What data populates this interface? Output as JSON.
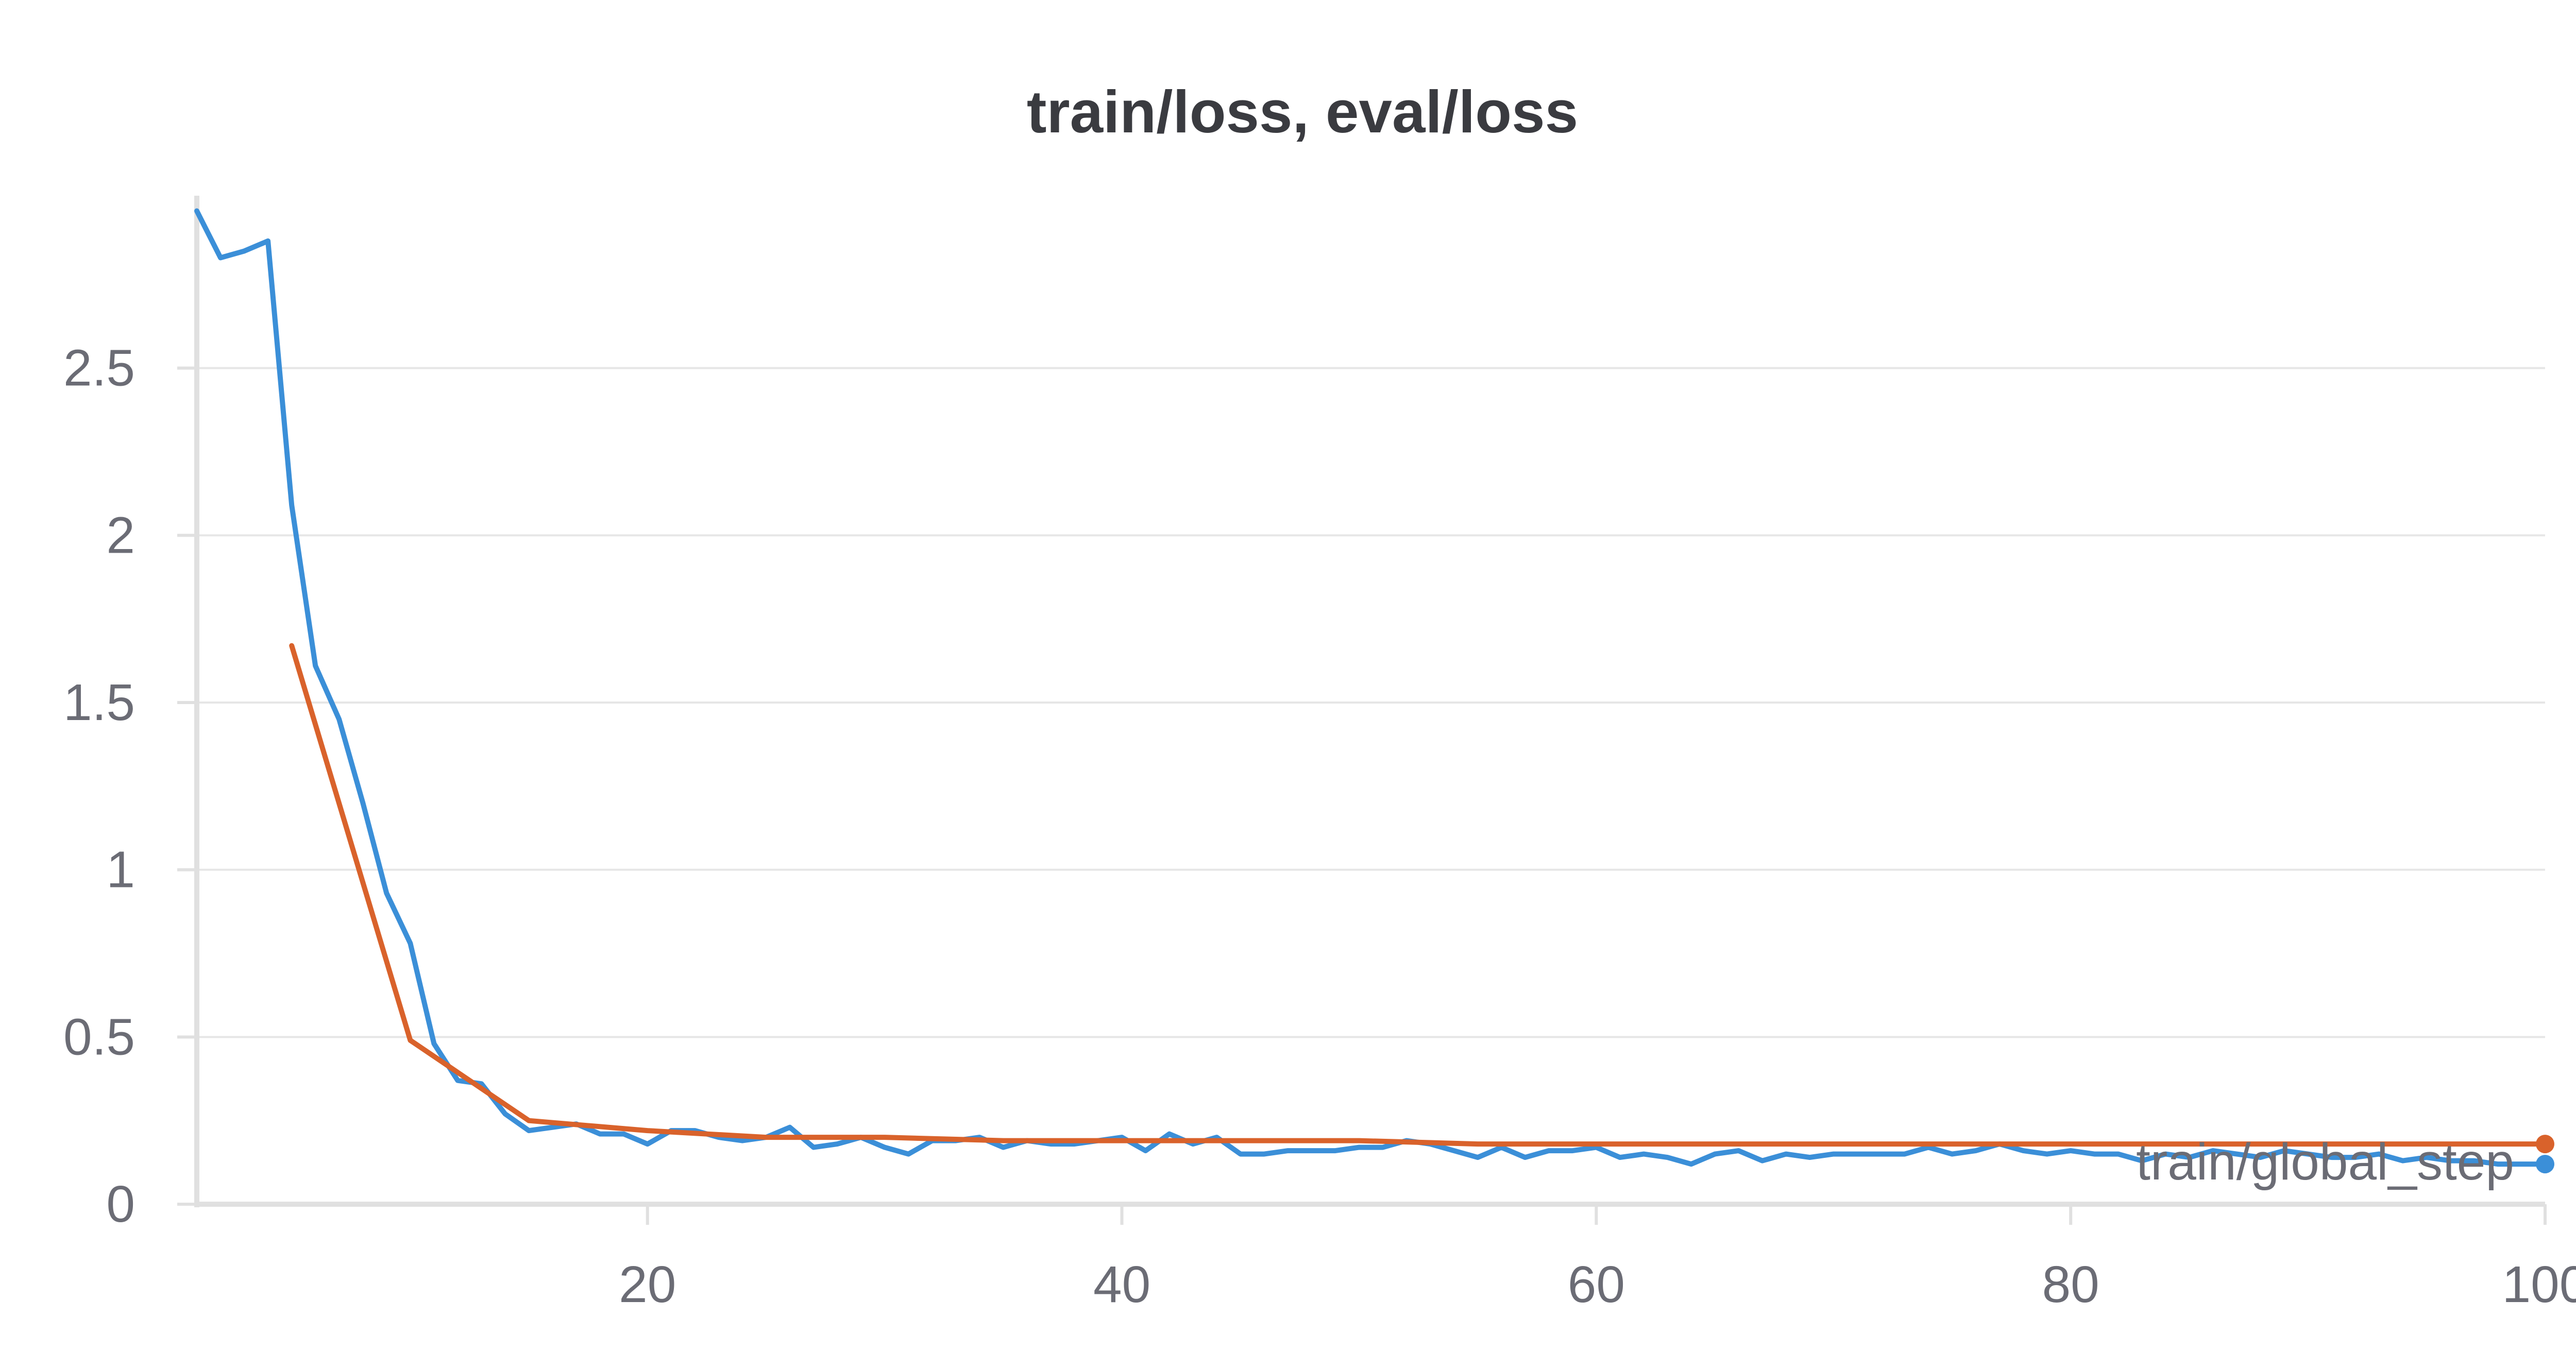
{
  "title": "train/loss, eval/loss",
  "chart_data": {
    "type": "line",
    "title": "train/loss, eval/loss",
    "xlabel": "train/global_step",
    "ylabel": "",
    "xlim": [
      1,
      100
    ],
    "ylim": [
      0,
      3.0
    ],
    "x_ticks": [
      20,
      40,
      60,
      80,
      100
    ],
    "y_ticks": [
      0,
      0.5,
      1,
      1.5,
      2,
      2.5
    ],
    "x_tick_labels": [
      "20",
      "40",
      "60",
      "80",
      "100"
    ],
    "y_tick_labels": [
      "0",
      "0.5",
      "1",
      "1.5",
      "2",
      "2.5"
    ],
    "grid": "horizontal",
    "legend": "none",
    "series": [
      {
        "color": "#3b8fd8",
        "x": [
          1,
          2,
          3,
          4,
          5,
          6,
          7,
          8,
          9,
          10,
          11,
          12,
          13,
          14,
          15,
          16,
          17,
          18,
          19,
          20,
          21,
          22,
          23,
          24,
          25,
          26,
          27,
          28,
          29,
          30,
          31,
          32,
          33,
          34,
          35,
          36,
          37,
          38,
          39,
          40,
          41,
          42,
          43,
          44,
          45,
          46,
          47,
          48,
          49,
          50,
          51,
          52,
          53,
          54,
          55,
          56,
          57,
          58,
          59,
          60,
          61,
          62,
          63,
          64,
          65,
          66,
          67,
          68,
          69,
          70,
          71,
          72,
          73,
          74,
          75,
          76,
          77,
          78,
          79,
          80,
          81,
          82,
          83,
          84,
          85,
          86,
          87,
          88,
          89,
          90,
          91,
          92,
          93,
          94,
          95,
          96,
          97,
          98,
          99,
          100
        ],
        "y": [
          2.97,
          2.83,
          2.85,
          2.88,
          2.09,
          1.61,
          1.45,
          1.2,
          0.93,
          0.78,
          0.48,
          0.37,
          0.36,
          0.27,
          0.22,
          0.23,
          0.24,
          0.21,
          0.21,
          0.18,
          0.22,
          0.22,
          0.2,
          0.19,
          0.2,
          0.23,
          0.17,
          0.18,
          0.2,
          0.17,
          0.15,
          0.19,
          0.19,
          0.2,
          0.17,
          0.19,
          0.18,
          0.18,
          0.19,
          0.2,
          0.16,
          0.21,
          0.18,
          0.2,
          0.15,
          0.15,
          0.16,
          0.16,
          0.16,
          0.17,
          0.17,
          0.19,
          0.18,
          0.16,
          0.14,
          0.17,
          0.14,
          0.16,
          0.16,
          0.17,
          0.14,
          0.15,
          0.14,
          0.12,
          0.15,
          0.16,
          0.13,
          0.15,
          0.14,
          0.15,
          0.15,
          0.15,
          0.15,
          0.17,
          0.15,
          0.16,
          0.18,
          0.16,
          0.15,
          0.16,
          0.15,
          0.15,
          0.13,
          0.15,
          0.14,
          0.16,
          0.15,
          0.14,
          0.16,
          0.15,
          0.14,
          0.14,
          0.15,
          0.13,
          0.14,
          0.13,
          0.13,
          0.12,
          0.12,
          0.12
        ]
      },
      {
        "color": "#d9622b",
        "x": [
          5,
          10,
          15,
          20,
          25,
          30,
          35,
          40,
          45,
          50,
          55,
          60,
          65,
          70,
          75,
          80,
          85,
          90,
          95,
          100
        ],
        "y": [
          1.67,
          0.49,
          0.25,
          0.22,
          0.2,
          0.2,
          0.19,
          0.19,
          0.19,
          0.19,
          0.18,
          0.18,
          0.18,
          0.18,
          0.18,
          0.18,
          0.18,
          0.18,
          0.18,
          0.18
        ]
      }
    ]
  }
}
